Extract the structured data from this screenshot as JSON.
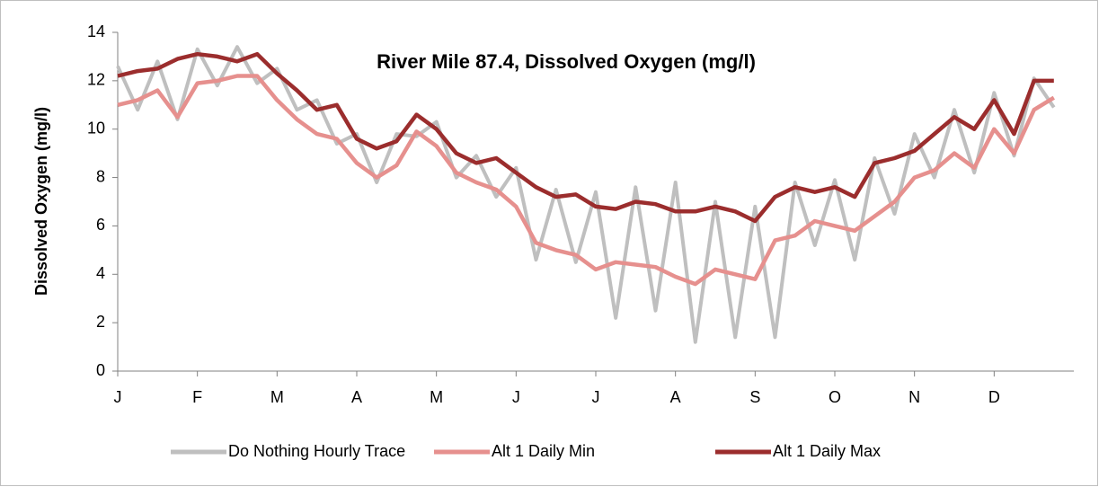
{
  "chart_data": {
    "type": "line",
    "title": "River Mile 87.4, Dissolved Oxygen (mg/l)",
    "y_label": "Dissolved Oxygen (mg/l)",
    "categories": [
      "J",
      null,
      null,
      null,
      "F",
      null,
      null,
      null,
      "M",
      null,
      null,
      null,
      "A",
      null,
      null,
      null,
      "M",
      null,
      null,
      null,
      "J",
      null,
      null,
      null,
      "J",
      null,
      null,
      null,
      "A",
      null,
      null,
      null,
      "S",
      null,
      null,
      null,
      "O",
      null,
      null,
      null,
      "N",
      null,
      null,
      null,
      "D",
      null,
      null,
      null
    ],
    "series": [
      {
        "name": "Do Nothing Hourly Trace",
        "color": "#bfbfbf",
        "values": [
          12.6,
          10.8,
          12.8,
          10.4,
          13.3,
          11.8,
          13.4,
          11.9,
          12.5,
          10.8,
          11.2,
          9.4,
          9.8,
          7.8,
          9.8,
          9.7,
          10.3,
          8.0,
          8.9,
          7.2,
          8.4,
          4.6,
          7.5,
          4.5,
          7.4,
          2.2,
          7.6,
          2.5,
          7.8,
          1.2,
          7.0,
          1.4,
          6.8,
          1.4,
          7.8,
          5.2,
          7.9,
          4.6,
          8.8,
          6.5,
          9.8,
          8.0,
          10.8,
          8.2,
          11.5,
          8.9,
          12.1,
          10.9
        ]
      },
      {
        "name": "Alt 1 Daily Min",
        "color": "#e6908e",
        "values": [
          11.0,
          11.2,
          11.6,
          10.5,
          11.9,
          12.0,
          12.2,
          12.2,
          11.2,
          10.4,
          9.8,
          9.6,
          8.6,
          8.0,
          8.5,
          9.9,
          9.3,
          8.2,
          7.8,
          7.5,
          6.8,
          5.3,
          5.0,
          4.8,
          4.2,
          4.5,
          4.4,
          4.3,
          3.9,
          3.6,
          4.2,
          4.0,
          3.8,
          5.4,
          5.6,
          6.2,
          6.0,
          5.8,
          6.4,
          7.0,
          8.0,
          8.3,
          9.0,
          8.4,
          10.0,
          9.0,
          10.8,
          11.3
        ]
      },
      {
        "name": "Alt 1 Daily Max",
        "color": "#9b2d2d",
        "values": [
          12.2,
          12.4,
          12.5,
          12.9,
          13.1,
          13.0,
          12.8,
          13.1,
          12.3,
          11.6,
          10.8,
          11.0,
          9.6,
          9.2,
          9.5,
          10.6,
          10.0,
          9.0,
          8.6,
          8.8,
          8.2,
          7.6,
          7.2,
          7.3,
          6.8,
          6.7,
          7.0,
          6.9,
          6.6,
          6.6,
          6.8,
          6.6,
          6.2,
          7.2,
          7.6,
          7.4,
          7.6,
          7.2,
          8.6,
          8.8,
          9.1,
          9.8,
          10.5,
          10.0,
          11.2,
          9.8,
          12.0,
          12.0
        ]
      }
    ],
    "ylim": [
      0,
      14
    ],
    "yticks": [
      0,
      2,
      4,
      6,
      8,
      10,
      12,
      14
    ],
    "grid": false
  }
}
